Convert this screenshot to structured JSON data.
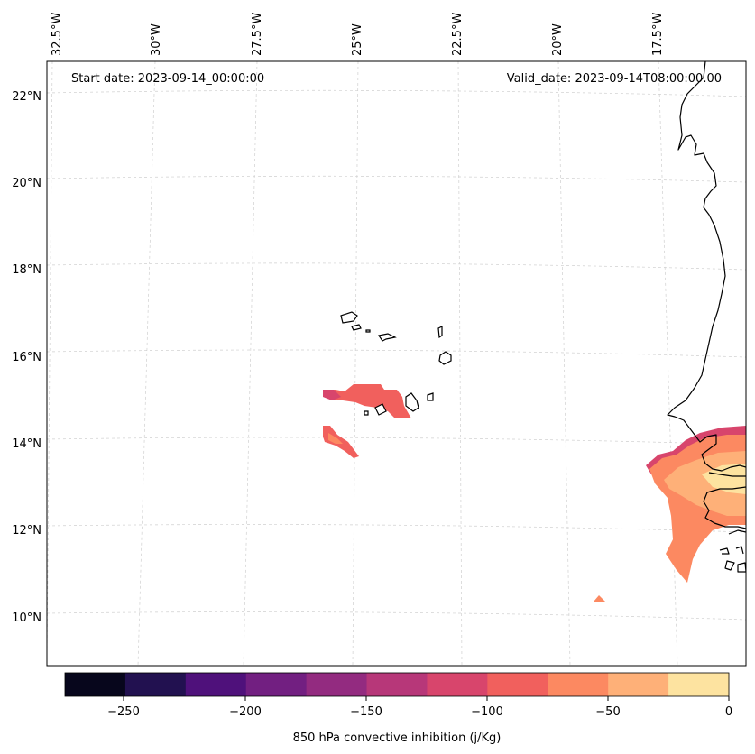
{
  "map": {
    "start_date_label": "Start date: 2023-09-14_00:00:00",
    "valid_date_label": "Valid_date: 2023-09-14T08:00:00.00",
    "lon_labels": [
      "32.5°W",
      "30°W",
      "27.5°W",
      "25°W",
      "22.5°W",
      "20°W",
      "17.5°W"
    ],
    "lat_labels": [
      "22°N",
      "20°N",
      "18°N",
      "16°N",
      "14°N",
      "12°N",
      "10°N"
    ]
  },
  "colorbar": {
    "label": "850 hPa convective inhibition (j/Kg)",
    "ticks": [
      "−250",
      "−200",
      "−150",
      "−100",
      "−50",
      "0"
    ],
    "bin_edges": [
      -275,
      -250,
      -225,
      -200,
      -175,
      -150,
      -125,
      -100,
      -75,
      -50,
      -25,
      0
    ],
    "colors": [
      "#07061c",
      "#221150",
      "#4f117b",
      "#721f81",
      "#932b80",
      "#b73779",
      "#d8456c",
      "#f1605d",
      "#fc8961",
      "#feb078",
      "#fde3a0"
    ]
  }
}
